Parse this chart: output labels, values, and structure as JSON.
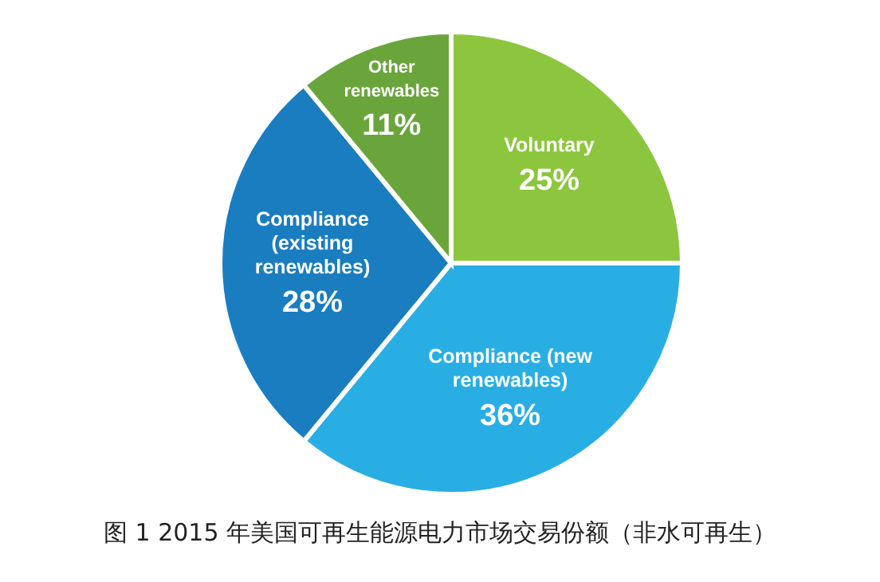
{
  "chart_data": {
    "type": "pie",
    "title": "图 1 2015 年美国可再生能源电力市场交易份额（非水可再生）",
    "categories": [
      "Voluntary",
      "Compliance (new renewables)",
      "Compliance (existing renewables)",
      "Other renewables"
    ],
    "values": [
      25,
      36,
      28,
      11
    ],
    "value_labels": [
      "25%",
      "36%",
      "28%",
      "11%"
    ],
    "colors": [
      "#8cc63e",
      "#29aee4",
      "#1a7dc0",
      "#6aa53c"
    ]
  }
}
